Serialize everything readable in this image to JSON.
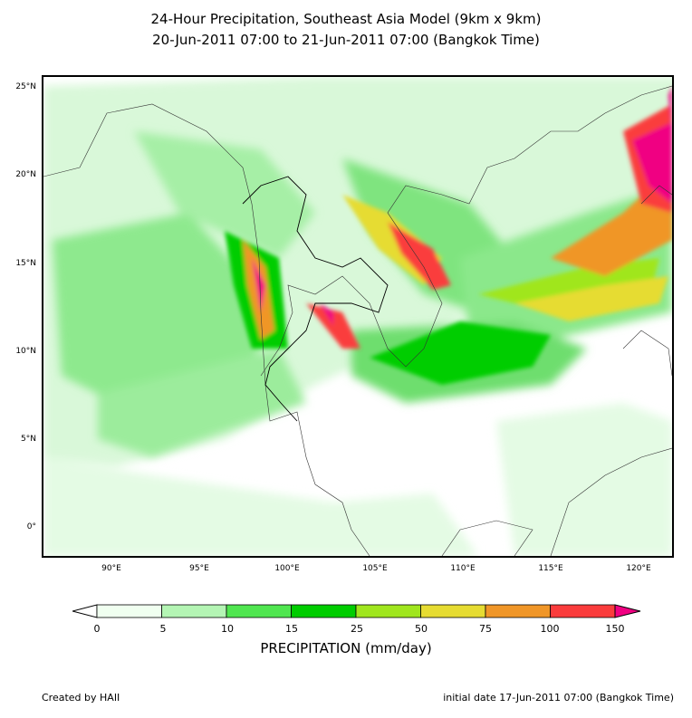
{
  "title": {
    "line1": "24-Hour Precipitation, Southeast Asia Model (9km x 9km)",
    "line2": "20-Jun-2011 07:00 to 21-Jun-2011 07:00 (Bangkok Time)"
  },
  "map": {
    "lat_labels": [
      "25°N",
      "20°N",
      "15°N",
      "10°N",
      "5°N",
      "0°"
    ],
    "lon_labels": [
      "90°E",
      "95°E",
      "100°E",
      "105°E",
      "110°E",
      "115°E",
      "120°E"
    ],
    "lon_range": [
      86.2,
      122
    ],
    "lat_range": [
      -1.8,
      25.6
    ]
  },
  "colorbar": {
    "levels": [
      "0",
      "5",
      "10",
      "15",
      "25",
      "50",
      "75",
      "100",
      "150"
    ],
    "colors": [
      "#f0fff0",
      "#b4f5b4",
      "#50e650",
      "#00cd00",
      "#a0e61e",
      "#e6dc32",
      "#f09628",
      "#fa3c3c",
      "#f00082"
    ],
    "label": "PRECIPITATION (mm/day)"
  },
  "footer": {
    "left": "Created by HAII",
    "right": "initial date 17-Jun-2011 07:00 (Bangkok Time)"
  }
}
